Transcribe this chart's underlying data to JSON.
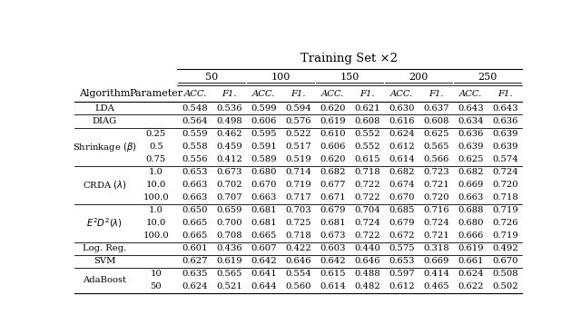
{
  "title": "Training Set ×2",
  "col_groups": [
    "50",
    "100",
    "150",
    "200",
    "250"
  ],
  "header1": "Algorithm",
  "header2": "Parameter",
  "rows": [
    {
      "algo": "LDA",
      "param": "",
      "vals": [
        0.548,
        0.536,
        0.599,
        0.594,
        0.62,
        0.621,
        0.63,
        0.637,
        0.643,
        0.643
      ]
    },
    {
      "algo": "DIAG",
      "param": "",
      "vals": [
        0.564,
        0.498,
        0.606,
        0.576,
        0.619,
        0.608,
        0.616,
        0.608,
        0.634,
        0.636
      ]
    },
    {
      "algo": "Shrinkage (β)",
      "param": "0.25",
      "vals": [
        0.559,
        0.462,
        0.595,
        0.522,
        0.61,
        0.552,
        0.624,
        0.625,
        0.636,
        0.639
      ]
    },
    {
      "algo": "",
      "param": "0.5",
      "vals": [
        0.558,
        0.459,
        0.591,
        0.517,
        0.606,
        0.552,
        0.612,
        0.565,
        0.639,
        0.639
      ]
    },
    {
      "algo": "",
      "param": "0.75",
      "vals": [
        0.556,
        0.412,
        0.589,
        0.519,
        0.62,
        0.615,
        0.614,
        0.566,
        0.625,
        0.574
      ]
    },
    {
      "algo": "CRDA (λ)",
      "param": "1.0",
      "vals": [
        0.653,
        0.673,
        0.68,
        0.714,
        0.682,
        0.718,
        0.682,
        0.723,
        0.682,
        0.724
      ]
    },
    {
      "algo": "",
      "param": "10.0",
      "vals": [
        0.663,
        0.702,
        0.67,
        0.719,
        0.677,
        0.722,
        0.674,
        0.721,
        0.669,
        0.72
      ]
    },
    {
      "algo": "",
      "param": "100.0",
      "vals": [
        0.663,
        0.707,
        0.663,
        0.717,
        0.671,
        0.722,
        0.67,
        0.72,
        0.663,
        0.718
      ]
    },
    {
      "algo": "E²D²(λ)",
      "param": "1.0",
      "vals": [
        0.65,
        0.659,
        0.681,
        0.703,
        0.679,
        0.704,
        0.685,
        0.716,
        0.688,
        0.719
      ]
    },
    {
      "algo": "",
      "param": "10.0",
      "vals": [
        0.665,
        0.7,
        0.681,
        0.725,
        0.681,
        0.724,
        0.679,
        0.724,
        0.68,
        0.726
      ]
    },
    {
      "algo": "",
      "param": "100.0",
      "vals": [
        0.665,
        0.708,
        0.665,
        0.718,
        0.673,
        0.722,
        0.672,
        0.721,
        0.666,
        0.719
      ]
    },
    {
      "algo": "Log. Reg.",
      "param": "",
      "vals": [
        0.601,
        0.436,
        0.607,
        0.422,
        0.603,
        0.44,
        0.575,
        0.318,
        0.619,
        0.492
      ]
    },
    {
      "algo": "SVM",
      "param": "",
      "vals": [
        0.627,
        0.619,
        0.642,
        0.646,
        0.642,
        0.646,
        0.653,
        0.669,
        0.661,
        0.67
      ]
    },
    {
      "algo": "AdaBoost",
      "param": "10",
      "vals": [
        0.635,
        0.565,
        0.641,
        0.554,
        0.615,
        0.488,
        0.597,
        0.414,
        0.624,
        0.508
      ]
    },
    {
      "algo": "",
      "param": "50",
      "vals": [
        0.624,
        0.521,
        0.644,
        0.56,
        0.614,
        0.482,
        0.612,
        0.465,
        0.622,
        0.502
      ]
    }
  ],
  "group_sep_after_rows": [
    0,
    1,
    4,
    7,
    10,
    11,
    12
  ],
  "fs_title": 9.5,
  "fs_header": 8,
  "fs_data": 7.2,
  "lw_thick": 0.8,
  "lw_thin": 0.6
}
